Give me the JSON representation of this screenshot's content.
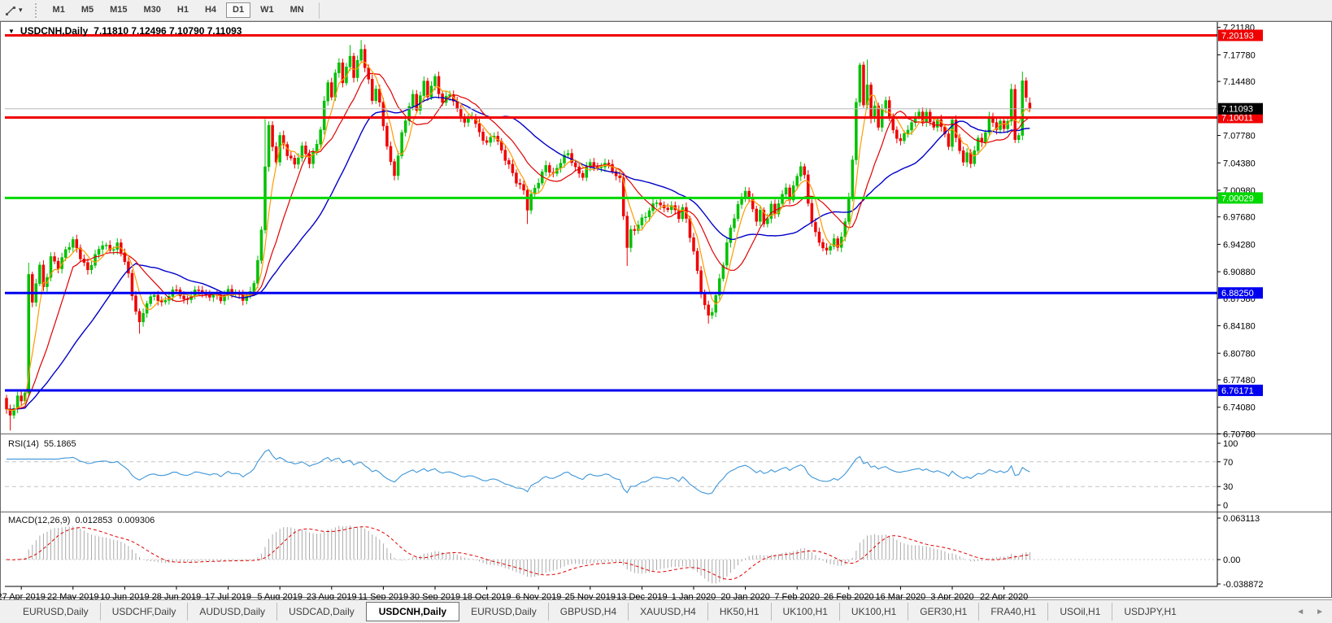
{
  "toolbar": {
    "timeframes": [
      "M1",
      "M5",
      "M15",
      "M30",
      "H1",
      "H4",
      "D1",
      "W1",
      "MN"
    ],
    "active_timeframe": "D1"
  },
  "chart": {
    "symbol_title": "USDCNH,Daily",
    "ohlc_text": "7.11810 7.12496 7.10790 7.11093"
  },
  "price_axis": {
    "ticks": [
      "7.21180",
      "7.17780",
      "7.14480",
      "7.07780",
      "7.04380",
      "7.00980",
      "6.97680",
      "6.94280",
      "6.90880",
      "6.87580",
      "6.84180",
      "6.80780",
      "6.77480",
      "6.74080",
      "6.70780"
    ]
  },
  "levels": [
    {
      "price": 7.20193,
      "label": "7.20193",
      "color": "#f00000",
      "width": 3
    },
    {
      "price": 7.10011,
      "label": "7.10011",
      "color": "#f00000",
      "width": 3
    },
    {
      "price": 7.00029,
      "label": "7.00029",
      "color": "#00d800",
      "width": 3
    },
    {
      "price": 6.8825,
      "label": "6.88250",
      "color": "#0000f0",
      "width": 3
    },
    {
      "price": 6.76171,
      "label": "6.76171",
      "color": "#0000f0",
      "width": 3
    }
  ],
  "current_price": {
    "price": 7.11093,
    "label": "7.11093",
    "badge_color": "#000000",
    "line_color": "#b8b8b8"
  },
  "rsi_panel": {
    "name": "RSI(14)",
    "value": "55.1865",
    "ticks": [
      {
        "v": 100,
        "label": "100"
      },
      {
        "v": 70,
        "label": "70"
      },
      {
        "v": 30,
        "label": "30"
      },
      {
        "v": 0,
        "label": "0"
      }
    ],
    "guide_levels": [
      70,
      30
    ],
    "line_color": "#3d96d8"
  },
  "macd_panel": {
    "name": "MACD(12,26,9)",
    "value_main": "0.012853",
    "value_signal": "0.009306",
    "ticks": [
      {
        "v": 0.063113,
        "label": "0.063113"
      },
      {
        "v": 0,
        "label": "0.00"
      },
      {
        "v": -0.038872,
        "label": "-0.038872"
      }
    ],
    "hist_color": "#a9a9a9",
    "signal_color": "#e00000"
  },
  "date_axis": {
    "labels": [
      "27 Apr 2019",
      "22 May 2019",
      "10 Jun 2019",
      "28 Jun 2019",
      "17 Jul 2019",
      "5 Aug 2019",
      "23 Aug 2019",
      "11 Sep 2019",
      "30 Sep 2019",
      "18 Oct 2019",
      "6 Nov 2019",
      "25 Nov 2019",
      "13 Dec 2019",
      "1 Jan 2020",
      "20 Jan 2020",
      "7 Feb 2020",
      "26 Feb 2020",
      "16 Mar 2020",
      "3 Apr 2020",
      "22 Apr 2020"
    ]
  },
  "tabs": {
    "items": [
      "EURUSD,Daily",
      "USDCHF,Daily",
      "AUDUSD,Daily",
      "USDCAD,Daily",
      "USDCNH,Daily",
      "EURUSD,Daily",
      "GBPUSD,H4",
      "XAUUSD,H4",
      "HK50,H1",
      "UK100,H1",
      "UK100,H1",
      "GER30,H1",
      "FRA40,H1",
      "USOil,H1",
      "USDJPY,H1"
    ],
    "active_index": 4
  },
  "chart_data": {
    "type": "candlestick",
    "symbol": "USDCNH",
    "timeframe": "Daily",
    "bars_count": 278,
    "date_labels_every_bars": 14,
    "first_label_bar": 4,
    "up_color": "#00c000",
    "down_color": "#f00000",
    "last_ohlc": {
      "open": 7.1181,
      "high": 7.12496,
      "low": 7.1079,
      "close": 7.11093
    },
    "horizontal_levels": [
      7.20193,
      7.10011,
      7.00029,
      6.8825,
      6.76171
    ],
    "moving_averages": [
      {
        "period": 5,
        "color": "#ff9a00",
        "name": "fast"
      },
      {
        "period": 13,
        "color": "#e00000",
        "name": "mid"
      },
      {
        "period": 30,
        "color": "#0000c8",
        "name": "slow"
      }
    ],
    "indicators": [
      {
        "name": "RSI",
        "period": 14,
        "last": 55.1865
      },
      {
        "name": "MACD",
        "fast": 12,
        "slow": 26,
        "signal": 9,
        "last_main": 0.012853,
        "last_signal": 0.009306,
        "scale_max": 0.063113,
        "scale_min": -0.038872
      }
    ],
    "price_anchors": [
      [
        0,
        6.737
      ],
      [
        1,
        6.728
      ],
      [
        2,
        6.742
      ],
      [
        3,
        6.756
      ],
      [
        4,
        6.748
      ],
      [
        5,
        6.762
      ],
      [
        6,
        6.905
      ],
      [
        7,
        6.868
      ],
      [
        8,
        6.895
      ],
      [
        9,
        6.915
      ],
      [
        10,
        6.888
      ],
      [
        11,
        6.905
      ],
      [
        12,
        6.928
      ],
      [
        14,
        6.916
      ],
      [
        16,
        6.934
      ],
      [
        18,
        6.946
      ],
      [
        20,
        6.928
      ],
      [
        22,
        6.912
      ],
      [
        24,
        6.928
      ],
      [
        26,
        6.942
      ],
      [
        28,
        6.935
      ],
      [
        30,
        6.944
      ],
      [
        32,
        6.924
      ],
      [
        33,
        6.904
      ],
      [
        34,
        6.878
      ],
      [
        35,
        6.86
      ],
      [
        36,
        6.843
      ],
      [
        37,
        6.858
      ],
      [
        38,
        6.872
      ],
      [
        40,
        6.882
      ],
      [
        42,
        6.868
      ],
      [
        44,
        6.878
      ],
      [
        46,
        6.888
      ],
      [
        48,
        6.874
      ],
      [
        50,
        6.88
      ],
      [
        52,
        6.886
      ],
      [
        54,
        6.877
      ],
      [
        56,
        6.882
      ],
      [
        58,
        6.876
      ],
      [
        60,
        6.884
      ],
      [
        62,
        6.88
      ],
      [
        64,
        6.876
      ],
      [
        66,
        6.884
      ],
      [
        67,
        6.898
      ],
      [
        68,
        6.922
      ],
      [
        69,
        6.958
      ],
      [
        70,
        7.04
      ],
      [
        71,
        7.088
      ],
      [
        72,
        7.062
      ],
      [
        73,
        7.048
      ],
      [
        74,
        7.078
      ],
      [
        76,
        7.056
      ],
      [
        78,
        7.04
      ],
      [
        80,
        7.062
      ],
      [
        82,
        7.046
      ],
      [
        84,
        7.068
      ],
      [
        85,
        7.088
      ],
      [
        86,
        7.118
      ],
      [
        87,
        7.142
      ],
      [
        88,
        7.126
      ],
      [
        89,
        7.152
      ],
      [
        90,
        7.168
      ],
      [
        91,
        7.146
      ],
      [
        92,
        7.162
      ],
      [
        93,
        7.178
      ],
      [
        94,
        7.152
      ],
      [
        95,
        7.168
      ],
      [
        96,
        7.184
      ],
      [
        97,
        7.162
      ],
      [
        98,
        7.144
      ],
      [
        99,
        7.122
      ],
      [
        100,
        7.138
      ],
      [
        101,
        7.118
      ],
      [
        102,
        7.092
      ],
      [
        103,
        7.066
      ],
      [
        104,
        7.042
      ],
      [
        105,
        7.028
      ],
      [
        106,
        7.052
      ],
      [
        107,
        7.078
      ],
      [
        108,
        7.098
      ],
      [
        109,
        7.116
      ],
      [
        110,
        7.128
      ],
      [
        111,
        7.112
      ],
      [
        112,
        7.128
      ],
      [
        113,
        7.142
      ],
      [
        114,
        7.126
      ],
      [
        115,
        7.138
      ],
      [
        116,
        7.148
      ],
      [
        117,
        7.132
      ],
      [
        118,
        7.12
      ],
      [
        120,
        7.132
      ],
      [
        122,
        7.108
      ],
      [
        124,
        7.092
      ],
      [
        126,
        7.104
      ],
      [
        128,
        7.082
      ],
      [
        130,
        7.068
      ],
      [
        132,
        7.078
      ],
      [
        134,
        7.058
      ],
      [
        136,
        7.042
      ],
      [
        138,
        7.022
      ],
      [
        140,
        7.008
      ],
      [
        141,
        6.986
      ],
      [
        142,
        7.002
      ],
      [
        144,
        7.022
      ],
      [
        146,
        7.042
      ],
      [
        148,
        7.028
      ],
      [
        150,
        7.044
      ],
      [
        152,
        7.056
      ],
      [
        154,
        7.038
      ],
      [
        156,
        7.028
      ],
      [
        158,
        7.044
      ],
      [
        160,
        7.034
      ],
      [
        162,
        7.046
      ],
      [
        164,
        7.036
      ],
      [
        166,
        7.022
      ],
      [
        167,
        6.978
      ],
      [
        168,
        6.938
      ],
      [
        169,
        6.958
      ],
      [
        170,
        6.962
      ],
      [
        172,
        6.975
      ],
      [
        174,
        6.985
      ],
      [
        176,
        6.995
      ],
      [
        178,
        6.985
      ],
      [
        180,
        6.992
      ],
      [
        182,
        6.978
      ],
      [
        183,
        6.988
      ],
      [
        184,
        6.972
      ],
      [
        185,
        6.952
      ],
      [
        186,
        6.932
      ],
      [
        187,
        6.908
      ],
      [
        188,
        6.885
      ],
      [
        189,
        6.868
      ],
      [
        190,
        6.855
      ],
      [
        191,
        6.862
      ],
      [
        192,
        6.878
      ],
      [
        193,
        6.898
      ],
      [
        194,
        6.918
      ],
      [
        195,
        6.942
      ],
      [
        196,
        6.962
      ],
      [
        197,
        6.978
      ],
      [
        198,
        6.992
      ],
      [
        199,
        7.002
      ],
      [
        200,
        7.012
      ],
      [
        201,
        6.998
      ],
      [
        202,
        6.985
      ],
      [
        203,
        6.972
      ],
      [
        204,
        6.982
      ],
      [
        205,
        6.968
      ],
      [
        206,
        6.978
      ],
      [
        207,
        6.992
      ],
      [
        208,
        6.982
      ],
      [
        209,
        6.996
      ],
      [
        210,
        7.002
      ],
      [
        211,
        7.012
      ],
      [
        212,
        6.998
      ],
      [
        213,
        7.012
      ],
      [
        214,
        7.028
      ],
      [
        215,
        7.042
      ],
      [
        216,
        7.028
      ],
      [
        217,
        6.996
      ],
      [
        218,
        6.972
      ],
      [
        219,
        6.955
      ],
      [
        220,
        6.945
      ],
      [
        221,
        6.938
      ],
      [
        222,
        6.932
      ],
      [
        223,
        6.942
      ],
      [
        224,
        6.952
      ],
      [
        225,
        6.938
      ],
      [
        226,
        6.955
      ],
      [
        227,
        6.972
      ],
      [
        228,
        6.998
      ],
      [
        229,
        7.048
      ],
      [
        230,
        7.118
      ],
      [
        231,
        7.162
      ],
      [
        232,
        7.118
      ],
      [
        233,
        7.142
      ],
      [
        234,
        7.098
      ],
      [
        235,
        7.118
      ],
      [
        236,
        7.088
      ],
      [
        237,
        7.108
      ],
      [
        238,
        7.122
      ],
      [
        239,
        7.098
      ],
      [
        240,
        7.082
      ],
      [
        242,
        7.072
      ],
      [
        244,
        7.088
      ],
      [
        246,
        7.098
      ],
      [
        247,
        7.108
      ],
      [
        248,
        7.092
      ],
      [
        249,
        7.105
      ],
      [
        250,
        7.098
      ],
      [
        251,
        7.088
      ],
      [
        252,
        7.098
      ],
      [
        253,
        7.092
      ],
      [
        254,
        7.078
      ],
      [
        255,
        7.062
      ],
      [
        256,
        7.098
      ],
      [
        257,
        7.072
      ],
      [
        258,
        7.058
      ],
      [
        259,
        7.048
      ],
      [
        260,
        7.056
      ],
      [
        261,
        7.044
      ],
      [
        262,
        7.062
      ],
      [
        263,
        7.072
      ],
      [
        264,
        7.068
      ],
      [
        265,
        7.082
      ],
      [
        266,
        7.098
      ],
      [
        267,
        7.094
      ],
      [
        268,
        7.088
      ],
      [
        269,
        7.095
      ],
      [
        270,
        7.088
      ],
      [
        271,
        7.098
      ],
      [
        272,
        7.132
      ],
      [
        273,
        7.072
      ],
      [
        274,
        7.078
      ],
      [
        275,
        7.142
      ],
      [
        276,
        7.125
      ],
      [
        277,
        7.11093
      ]
    ],
    "wick_overrides": [
      {
        "i": 1,
        "low": 6.712
      },
      {
        "i": 6,
        "high": 6.92
      },
      {
        "i": 36,
        "low": 6.832
      },
      {
        "i": 70,
        "high": 7.098
      },
      {
        "i": 93,
        "high": 7.19
      },
      {
        "i": 96,
        "high": 7.1962
      },
      {
        "i": 141,
        "low": 6.968
      },
      {
        "i": 168,
        "low": 6.916
      },
      {
        "i": 190,
        "low": 6.8445
      },
      {
        "i": 231,
        "high": 7.168
      },
      {
        "i": 233,
        "high": 7.172
      },
      {
        "i": 272,
        "high": 7.142
      },
      {
        "i": 275,
        "high": 7.157
      },
      {
        "i": 277,
        "high": 7.12496,
        "low": 7.1079
      }
    ]
  }
}
